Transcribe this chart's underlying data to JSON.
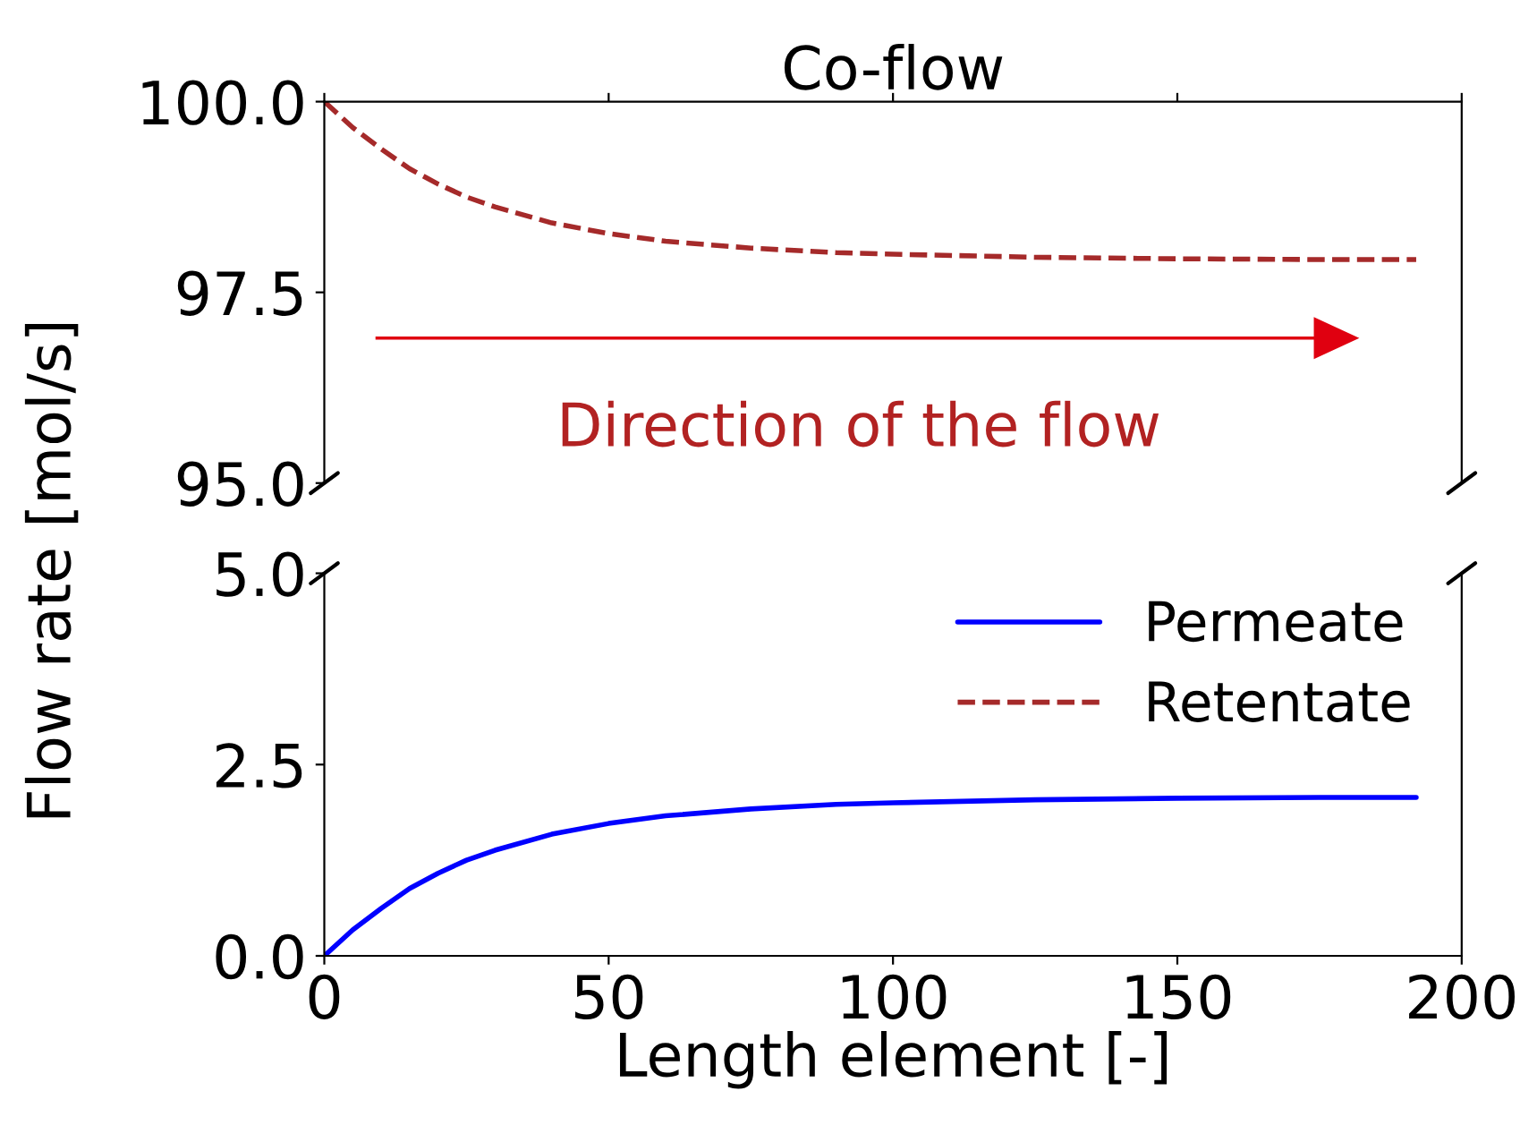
{
  "chart_data": [
    {
      "type": "line",
      "title": "Co-flow",
      "ylabel": "Flow rate [mol/s]",
      "xlim": [
        0,
        200
      ],
      "xticks": [
        0,
        50,
        100,
        150,
        200
      ],
      "ylim": [
        95,
        100
      ],
      "yticks": [
        {
          "value": 95,
          "label": "95.0"
        },
        {
          "value": 97.5,
          "label": "97.5"
        },
        {
          "value": 100,
          "label": "100.0"
        }
      ],
      "tick_labels": "y",
      "grid": false,
      "legend": "bottom",
      "annotations": [
        "Direction of the flow"
      ],
      "x": [
        0,
        5,
        10,
        15,
        20,
        25,
        30,
        40,
        50,
        60,
        75,
        90,
        100,
        125,
        150,
        175,
        192
      ],
      "series": [
        {
          "name": "Retentate",
          "color": "#a52a2a",
          "line_style": "dashed",
          "values": [
            100,
            99.66,
            99.38,
            99.12,
            98.92,
            98.75,
            98.62,
            98.41,
            98.27,
            98.17,
            98.08,
            98.02,
            98.0,
            97.96,
            97.94,
            97.93,
            97.93
          ]
        }
      ]
    },
    {
      "type": "line",
      "xlabel": "Length element [-]",
      "xlim": [
        0,
        200
      ],
      "xticks": [
        0,
        50,
        100,
        150,
        200
      ],
      "ylim": [
        0,
        5
      ],
      "yticks": [
        {
          "value": 0,
          "label": "0.0"
        },
        {
          "value": 2.5,
          "label": "2.5"
        },
        {
          "value": 5,
          "label": "5.0"
        }
      ],
      "grid": false,
      "legend": "top right",
      "x": [
        0,
        5,
        10,
        15,
        20,
        25,
        30,
        40,
        50,
        60,
        75,
        90,
        100,
        125,
        150,
        175,
        192
      ],
      "series": [
        {
          "name": "Permeate",
          "color": "#0000ff",
          "line_style": "solid",
          "values": [
            0,
            0.34,
            0.62,
            0.88,
            1.08,
            1.25,
            1.38,
            1.59,
            1.73,
            1.83,
            1.92,
            1.98,
            2.0,
            2.04,
            2.06,
            2.07,
            2.07
          ]
        }
      ]
    }
  ]
}
